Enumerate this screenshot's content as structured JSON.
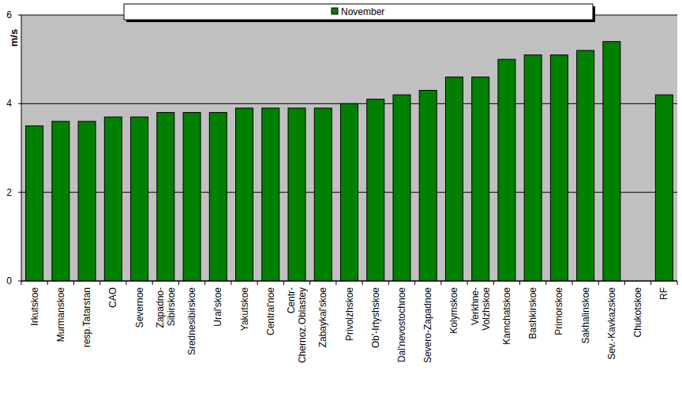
{
  "chart_data": {
    "type": "bar",
    "y_label": "m/s",
    "categories": [
      "Irkutskoe",
      "Murmanskoe",
      "resp.Tatarstan",
      "CAO",
      "Severnoe",
      "Zapadno-\nSibirskoe",
      "Srednesibirskoe",
      "Ural'skoe",
      "Yakutskoe",
      "Central'noe",
      "Centr-\nChernoz.Oblastey",
      "Zabaykal'skoe",
      "Privolzhskoe",
      "Ob'-Irtyshskoe",
      "Dal'nevostochnoe",
      "Severo-Zapadnoe",
      "Kolymskoe",
      "Verkhne-\nVolzhskoe",
      "Kamchatskoe",
      "Bashkirskoe",
      "Primorskoe",
      "Sakhalinskoe",
      "Sev.-Kavkazskoe",
      "Chukotskoe",
      "RF"
    ],
    "series": [
      {
        "name": "November",
        "color": "#008000",
        "values": [
          3.5,
          3.6,
          3.6,
          3.7,
          3.7,
          3.8,
          3.8,
          3.8,
          3.9,
          3.9,
          3.9,
          3.9,
          4.0,
          4.1,
          4.2,
          4.3,
          4.6,
          4.6,
          5.0,
          5.1,
          5.1,
          5.2,
          5.4,
          null,
          4.2
        ]
      }
    ],
    "ylim": [
      0,
      6
    ],
    "yticks": [
      0,
      2,
      4,
      6
    ],
    "grid": true,
    "legend": "top"
  }
}
